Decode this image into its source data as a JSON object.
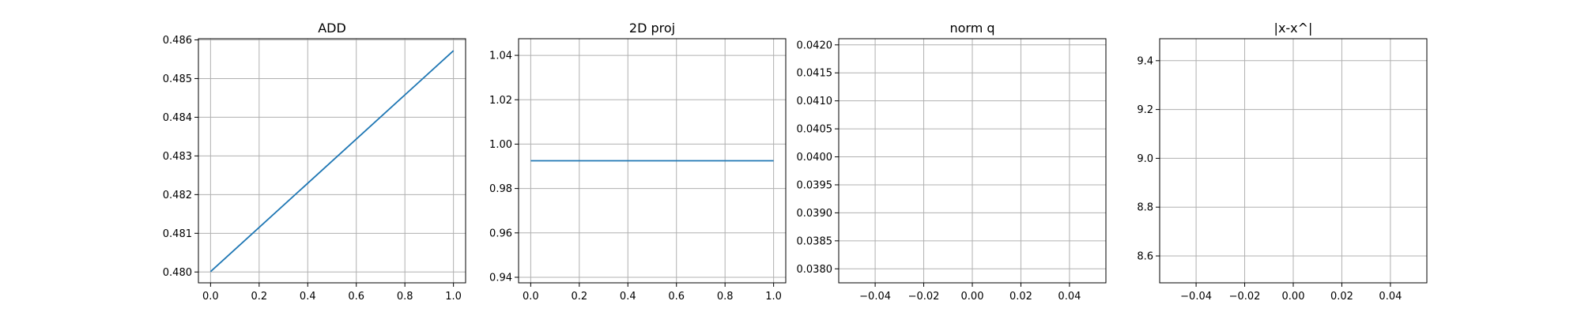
{
  "chart_data": [
    {
      "type": "line",
      "title": "ADD",
      "xlabel": "",
      "ylabel": "",
      "xlim": [
        -0.05,
        1.05
      ],
      "ylim": [
        0.47972,
        0.48603
      ],
      "xticks": [
        0.0,
        0.2,
        0.4,
        0.6,
        0.8,
        1.0
      ],
      "xtick_labels": [
        "0.0",
        "0.2",
        "0.4",
        "0.6",
        "0.8",
        "1.0"
      ],
      "yticks": [
        0.48,
        0.481,
        0.482,
        0.483,
        0.484,
        0.485,
        0.486
      ],
      "ytick_labels": [
        "0.480",
        "0.481",
        "0.482",
        "0.483",
        "0.484",
        "0.485",
        "0.486"
      ],
      "grid": true,
      "series": [
        {
          "x": [
            0.0,
            1.0
          ],
          "y": [
            0.48001,
            0.48572
          ],
          "color": "#1f77b4"
        }
      ]
    },
    {
      "type": "line",
      "title": "2D proj",
      "xlabel": "",
      "ylabel": "",
      "xlim": [
        -0.05,
        1.05
      ],
      "ylim": [
        0.9375,
        1.0475
      ],
      "xticks": [
        0.0,
        0.2,
        0.4,
        0.6,
        0.8,
        1.0
      ],
      "xtick_labels": [
        "0.0",
        "0.2",
        "0.4",
        "0.6",
        "0.8",
        "1.0"
      ],
      "yticks": [
        0.94,
        0.96,
        0.98,
        1.0,
        1.02,
        1.04
      ],
      "ytick_labels": [
        "0.94",
        "0.96",
        "0.98",
        "1.00",
        "1.02",
        "1.04"
      ],
      "grid": true,
      "series": [
        {
          "x": [
            0.0,
            1.0
          ],
          "y": [
            0.9925,
            0.9925
          ],
          "color": "#1f77b4"
        }
      ]
    },
    {
      "type": "line",
      "title": "norm q",
      "xlabel": "",
      "ylabel": "",
      "xlim": [
        -0.055,
        0.055
      ],
      "ylim": [
        0.03775,
        0.04211
      ],
      "xticks": [
        -0.04,
        -0.02,
        0.0,
        0.02,
        0.04
      ],
      "xtick_labels": [
        "−0.04",
        "−0.02",
        "0.00",
        "0.02",
        "0.04"
      ],
      "yticks": [
        0.038,
        0.0385,
        0.039,
        0.0395,
        0.04,
        0.0405,
        0.041,
        0.0415,
        0.042
      ],
      "ytick_labels": [
        "0.0380",
        "0.0385",
        "0.0390",
        "0.0395",
        "0.0400",
        "0.0405",
        "0.0410",
        "0.0415",
        "0.0420"
      ],
      "grid": true,
      "series": []
    },
    {
      "type": "line",
      "title": "|x-x^|",
      "xlabel": "",
      "ylabel": "",
      "xlim": [
        -0.055,
        0.055
      ],
      "ylim": [
        8.49,
        9.49
      ],
      "xticks": [
        -0.04,
        -0.02,
        0.0,
        0.02,
        0.04
      ],
      "xtick_labels": [
        "−0.04",
        "−0.02",
        "0.00",
        "0.02",
        "0.04"
      ],
      "yticks": [
        8.6,
        8.8,
        9.0,
        9.2,
        9.4
      ],
      "ytick_labels": [
        "8.6",
        "8.8",
        "9.0",
        "9.2",
        "9.4"
      ],
      "grid": true,
      "series": []
    }
  ]
}
